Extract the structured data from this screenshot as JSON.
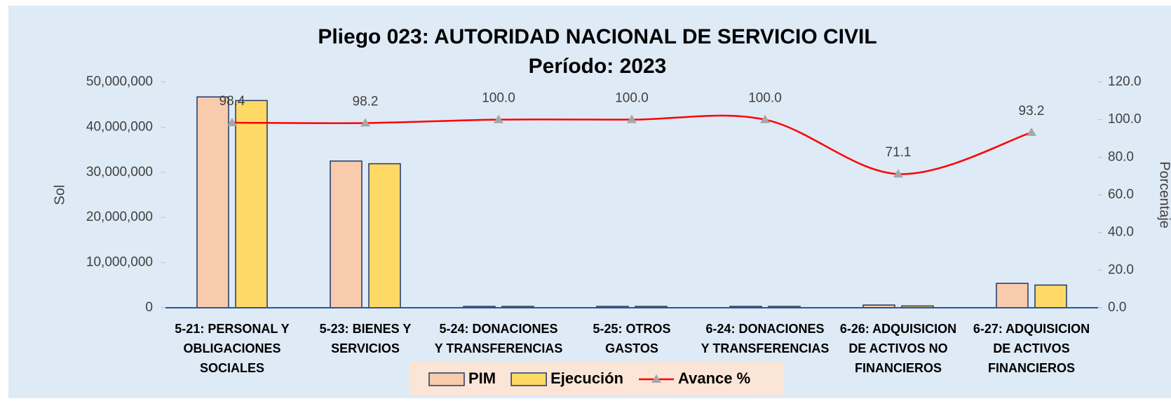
{
  "chart_data": {
    "type": "bar",
    "title": "Pliego 023: AUTORIDAD NACIONAL DE SERVICIO CIVIL",
    "subtitle": "Período: 2023",
    "y_label": "Sol",
    "y2_label": "Porcentaje",
    "categories": [
      "5-21: PERSONAL Y OBLIGACIONES SOCIALES",
      "5-23: BIENES Y SERVICIOS",
      "5-24: DONACIONES Y TRANSFERENCIAS",
      "5-25: OTROS GASTOS",
      "6-24: DONACIONES Y TRANSFERENCIAS",
      "6-26: ADQUISICION DE ACTIVOS NO FINANCIEROS",
      "6-27: ADQUISICION DE ACTIVOS FINANCIEROS"
    ],
    "series": [
      {
        "name": "PIM",
        "color": "#f8cbad",
        "values": [
          46700000,
          32500000,
          300000,
          300000,
          300000,
          600000,
          5400000
        ]
      },
      {
        "name": "Ejecución",
        "color": "#ffd966",
        "values": [
          45900000,
          31900000,
          300000,
          300000,
          300000,
          400000,
          5030000
        ]
      },
      {
        "name": "Avance %",
        "type": "line",
        "axis": "y2",
        "color": "#ff0000",
        "marker_color": "#a6a6a6",
        "values": [
          98.4,
          98.2,
          100,
          100,
          100,
          71.1,
          93.2
        ],
        "value_labels": [
          "98.4",
          "98.2",
          "100.0",
          "100.0",
          "100.0",
          "71.1",
          "93.2"
        ]
      }
    ],
    "ylim": [
      0,
      50000000
    ],
    "yticks": [
      0,
      {
        "value": 10000000,
        "label": "10,000,000"
      },
      {
        "value": 20000000,
        "label": "20,000,000"
      },
      {
        "value": 30000000,
        "label": "30,000,000"
      },
      {
        "value": 40000000,
        "label": "40,000,000"
      },
      {
        "value": 50000000,
        "label": "50,000,000"
      }
    ],
    "y2lim": [
      0,
      120
    ],
    "y2ticks": [
      {
        "value": 0,
        "label": "0.0"
      },
      {
        "value": 20,
        "label": "20.0"
      },
      {
        "value": 40,
        "label": "40.0"
      },
      {
        "value": 60,
        "label": "60.0"
      },
      {
        "value": 80,
        "label": "80.0"
      },
      {
        "value": 100,
        "label": "100.0"
      },
      {
        "value": 120,
        "label": "120.0"
      }
    ],
    "legend": "bottom",
    "bar_edge_color": "#1f3864"
  }
}
